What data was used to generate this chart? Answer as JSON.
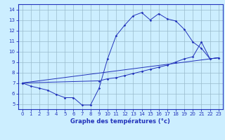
{
  "xlabel": "Graphe des températures (°c)",
  "bg_color": "#cceeff",
  "line_color": "#2233bb",
  "xlim": [
    -0.5,
    23.5
  ],
  "ylim": [
    4.5,
    14.5
  ],
  "xticks": [
    0,
    1,
    2,
    3,
    4,
    5,
    6,
    7,
    8,
    9,
    10,
    11,
    12,
    13,
    14,
    15,
    16,
    17,
    18,
    19,
    20,
    21,
    22,
    23
  ],
  "yticks": [
    5,
    6,
    7,
    8,
    9,
    10,
    11,
    12,
    13,
    14
  ],
  "line1_x": [
    0,
    1,
    2,
    3,
    4,
    5,
    6,
    7,
    8,
    9,
    10,
    11,
    12,
    13,
    14,
    15,
    16,
    17,
    18,
    19,
    20,
    21,
    22,
    23
  ],
  "line1_y": [
    7.0,
    6.7,
    6.5,
    6.3,
    5.9,
    5.6,
    5.6,
    4.9,
    4.9,
    6.5,
    9.3,
    11.5,
    12.5,
    13.4,
    13.7,
    13.0,
    13.6,
    13.1,
    12.9,
    12.1,
    10.9,
    10.3,
    9.3,
    9.4
  ],
  "line2_x": [
    0,
    9,
    10,
    11,
    12,
    13,
    14,
    15,
    16,
    17,
    18,
    19,
    20,
    21,
    22,
    23
  ],
  "line2_y": [
    7.0,
    7.2,
    7.4,
    7.5,
    7.7,
    7.9,
    8.1,
    8.3,
    8.5,
    8.7,
    9.0,
    9.3,
    9.5,
    10.9,
    9.3,
    9.4
  ],
  "line3_x": [
    0,
    23
  ],
  "line3_y": [
    7.0,
    9.4
  ]
}
